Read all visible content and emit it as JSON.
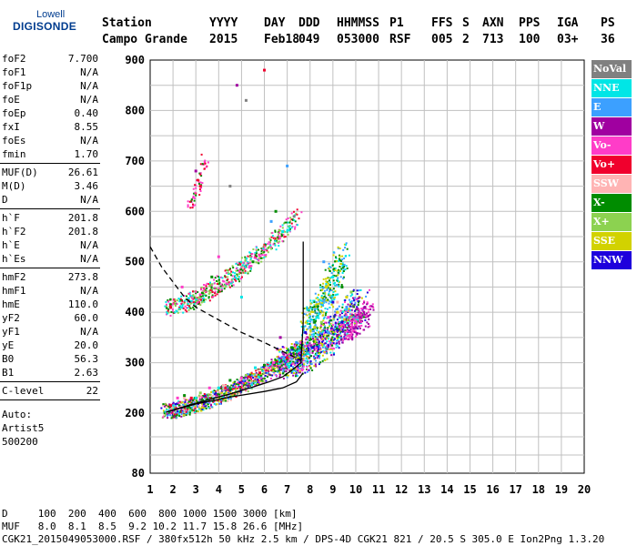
{
  "logo": {
    "line1": "Lowell",
    "line2": "DIGISONDE"
  },
  "header": {
    "cols": [
      {
        "label": "Station",
        "value": "Campo Grande"
      },
      {
        "label": "YYYY",
        "value": "2015"
      },
      {
        "label": "DAY",
        "value": "Feb18"
      },
      {
        "label": "DDD",
        "value": "049"
      },
      {
        "label": "HHMMSS",
        "value": "053000"
      },
      {
        "label": "P1",
        "value": "RSF"
      },
      {
        "label": "FFS",
        "value": "005"
      },
      {
        "label": "S",
        "value": "2"
      },
      {
        "label": "AXN",
        "value": "713"
      },
      {
        "label": "PPS",
        "value": "100"
      },
      {
        "label": "IGA",
        "value": "03+"
      },
      {
        "label": "PS",
        "value": "36"
      }
    ]
  },
  "params": {
    "group1": [
      {
        "label": "foF2",
        "value": "7.700"
      },
      {
        "label": "foF1",
        "value": "N/A"
      },
      {
        "label": "foF1p",
        "value": "N/A"
      },
      {
        "label": "foE",
        "value": "N/A"
      },
      {
        "label": "foEp",
        "value": "0.40"
      },
      {
        "label": "fxI",
        "value": "8.55"
      },
      {
        "label": "foEs",
        "value": "N/A"
      },
      {
        "label": "fmin",
        "value": "1.70"
      }
    ],
    "group2": [
      {
        "label": "MUF(D)",
        "value": "26.61"
      },
      {
        "label": "M(D)",
        "value": "3.46"
      },
      {
        "label": "D",
        "value": "N/A"
      }
    ],
    "group3": [
      {
        "label": "h`F",
        "value": "201.8"
      },
      {
        "label": "h`F2",
        "value": "201.8"
      },
      {
        "label": "h`E",
        "value": "N/A"
      },
      {
        "label": "h`Es",
        "value": "N/A"
      }
    ],
    "group4": [
      {
        "label": "hmF2",
        "value": "273.8"
      },
      {
        "label": "hmF1",
        "value": "N/A"
      },
      {
        "label": "hmE",
        "value": "110.0"
      },
      {
        "label": "yF2",
        "value": "60.0"
      },
      {
        "label": "yF1",
        "value": "N/A"
      },
      {
        "label": "yE",
        "value": "20.0"
      },
      {
        "label": "B0",
        "value": "56.3"
      },
      {
        "label": "B1",
        "value": "2.63"
      }
    ],
    "group5": [
      {
        "label": "C-level",
        "value": "22"
      }
    ],
    "auto": [
      "Auto:",
      "Artist5",
      "500200"
    ]
  },
  "legend": [
    {
      "name": "NoVal",
      "color": "#808080"
    },
    {
      "name": "NNE",
      "color": "#00e6e6"
    },
    {
      "name": "E",
      "color": "#3ca0ff"
    },
    {
      "name": "W",
      "color": "#a000a0"
    },
    {
      "name": "Vo-",
      "color": "#ff3cc8"
    },
    {
      "name": "Vo+",
      "color": "#f0002d"
    },
    {
      "name": "SSW",
      "color": "#ffb4b4"
    },
    {
      "name": "X-",
      "color": "#008c00"
    },
    {
      "name": "X+",
      "color": "#8cd250"
    },
    {
      "name": "SSE",
      "color": "#d2d200"
    },
    {
      "name": "NNW",
      "color": "#1e00dc"
    }
  ],
  "chart_data": {
    "type": "scatter",
    "xlim": [
      1,
      20
    ],
    "ylim": [
      80,
      900
    ],
    "x_ticks": [
      1,
      2,
      3,
      4,
      5,
      6,
      7,
      8,
      9,
      10,
      11,
      12,
      13,
      14,
      15,
      16,
      17,
      18,
      19,
      20
    ],
    "y_ticks": [
      80,
      200,
      300,
      400,
      500,
      600,
      700,
      800,
      900
    ],
    "grid": true,
    "legend_placement": "right",
    "series": [
      {
        "name": "NoVal",
        "color": "#808080",
        "values": [
          [
            4.5,
            650
          ],
          [
            5.2,
            820
          ],
          [
            7.3,
            590
          ]
        ]
      },
      {
        "name": "NNE",
        "color": "#00e6e6",
        "values": [
          [
            4.0,
            250
          ],
          [
            5.6,
            290
          ],
          [
            7.2,
            330
          ],
          [
            8.3,
            390
          ],
          [
            9.0,
            470
          ],
          [
            6.8,
            560
          ],
          [
            5.0,
            430
          ],
          [
            3.0,
            230
          ]
        ]
      },
      {
        "name": "E",
        "color": "#3ca0ff",
        "values": [
          [
            7.4,
            340
          ],
          [
            8.0,
            370
          ],
          [
            8.8,
            360
          ],
          [
            9.4,
            390
          ],
          [
            7.0,
            690
          ],
          [
            9.6,
            410
          ],
          [
            6.3,
            580
          ],
          [
            8.6,
            500
          ]
        ]
      },
      {
        "name": "W",
        "color": "#a000a0",
        "values": [
          [
            4.8,
            850
          ],
          [
            10.2,
            390
          ],
          [
            10.4,
            410
          ],
          [
            10.0,
            370
          ],
          [
            3.0,
            680
          ],
          [
            6.7,
            350
          ]
        ]
      },
      {
        "name": "Vo-",
        "color": "#ff3cc8",
        "values": [
          [
            2.2,
            230
          ],
          [
            3.6,
            250
          ],
          [
            5.0,
            270
          ],
          [
            6.4,
            300
          ],
          [
            7.6,
            340
          ],
          [
            8.8,
            390
          ],
          [
            2.4,
            450
          ],
          [
            4.0,
            510
          ]
        ]
      },
      {
        "name": "Vo+",
        "color": "#f0002d",
        "values": [
          [
            1.9,
            215
          ],
          [
            2.8,
            230
          ],
          [
            4.3,
            250
          ],
          [
            5.8,
            280
          ],
          [
            7.0,
            310
          ],
          [
            1.9,
            410
          ],
          [
            3.2,
            650
          ],
          [
            6.0,
            880
          ]
        ]
      },
      {
        "name": "SSW",
        "color": "#ffb4b4",
        "values": [
          [
            2.5,
            230
          ],
          [
            4.2,
            255
          ],
          [
            6.1,
            290
          ],
          [
            9.2,
            420
          ]
        ]
      },
      {
        "name": "X-",
        "color": "#008c00",
        "values": [
          [
            2.5,
            235
          ],
          [
            4.5,
            265
          ],
          [
            6.0,
            295
          ],
          [
            7.2,
            330
          ],
          [
            8.2,
            380
          ],
          [
            9.4,
            450
          ],
          [
            5.5,
            500
          ],
          [
            3.7,
            470
          ],
          [
            6.5,
            600
          ]
        ]
      },
      {
        "name": "X+",
        "color": "#8cd250",
        "values": [
          [
            3.2,
            240
          ],
          [
            5.2,
            275
          ],
          [
            7.0,
            320
          ],
          [
            8.5,
            380
          ],
          [
            9.8,
            440
          ]
        ]
      },
      {
        "name": "SSE",
        "color": "#d2d200",
        "values": [
          [
            8.2,
            370
          ],
          [
            9.2,
            400
          ],
          [
            9.6,
            430
          ],
          [
            8.7,
            450
          ]
        ]
      },
      {
        "name": "NNW",
        "color": "#1e00dc",
        "values": [
          [
            7.8,
            360
          ],
          [
            9.0,
            420
          ],
          [
            9.4,
            380
          ]
        ]
      }
    ],
    "lines": [
      {
        "name": "profile",
        "style": "solid",
        "values": [
          [
            1.7,
            202
          ],
          [
            2.5,
            213
          ],
          [
            3.5,
            226
          ],
          [
            4.5,
            238
          ],
          [
            5.5,
            252
          ],
          [
            6.2,
            262
          ],
          [
            6.8,
            272
          ],
          [
            7.2,
            285
          ],
          [
            7.6,
            300
          ],
          [
            7.7,
            380
          ],
          [
            7.7,
            540
          ]
        ]
      },
      {
        "name": "profile-lower",
        "style": "solid",
        "values": [
          [
            1.7,
            202
          ],
          [
            3.0,
            218
          ],
          [
            4.5,
            232
          ],
          [
            6.0,
            243
          ],
          [
            6.8,
            250
          ],
          [
            7.4,
            262
          ],
          [
            7.7,
            280
          ]
        ]
      },
      {
        "name": "virtual-trace",
        "style": "dashed",
        "values": [
          [
            1.0,
            530
          ],
          [
            1.5,
            490
          ],
          [
            2.0,
            460
          ],
          [
            2.5,
            430
          ],
          [
            3.0,
            410
          ],
          [
            4.0,
            385
          ],
          [
            5.0,
            360
          ],
          [
            6.0,
            340
          ],
          [
            7.0,
            318
          ],
          [
            7.6,
            305
          ]
        ]
      }
    ]
  },
  "footer": {
    "d_row": "D     100  200  400  600  800 1000 1500 3000 [km]",
    "muf_row": "MUF   8.0  8.1  8.5  9.2 10.2 11.7 15.8 26.6 [MHz]",
    "file_row": "CGK21_2015049053000.RSF / 380fx512h 50 kHz 2.5 km / DPS-4D CGK21 821 / 20.5 S 305.0 E Ion2Png 1.3.20"
  }
}
